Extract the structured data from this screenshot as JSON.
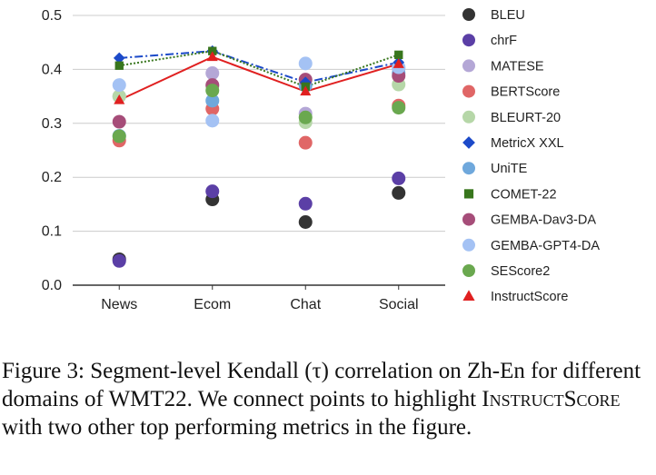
{
  "chart_data": {
    "type": "scatter",
    "categories": [
      "News",
      "Ecom",
      "Chat",
      "Social"
    ],
    "ylim": [
      0,
      0.5
    ],
    "yticks": [
      "0.0",
      "0.1",
      "0.2",
      "0.3",
      "0.4",
      "0.5"
    ],
    "connected_series": [
      "MetricX XXL",
      "COMET-22",
      "InstructScore"
    ],
    "series": [
      {
        "name": "BLEU",
        "color": "#333333",
        "marker": "circle",
        "values": [
          0.048,
          0.159,
          0.117,
          0.171
        ]
      },
      {
        "name": "chrF",
        "color": "#5b3fa6",
        "marker": "circle",
        "values": [
          0.045,
          0.174,
          0.151,
          0.198
        ]
      },
      {
        "name": "MATESE",
        "color": "#b4a7d6",
        "marker": "circle",
        "values": [
          0.35,
          0.393,
          0.318,
          0.402
        ]
      },
      {
        "name": "BERTScore",
        "color": "#e06666",
        "marker": "circle",
        "values": [
          0.268,
          0.327,
          0.264,
          0.333
        ]
      },
      {
        "name": "BLEURT-20",
        "color": "#b6d7a8",
        "marker": "circle",
        "values": [
          0.35,
          0.369,
          0.302,
          0.372
        ]
      },
      {
        "name": "MetricX XXL",
        "color": "#1c4ac9",
        "marker": "diamond",
        "line": "dashdot",
        "values": [
          0.421,
          0.434,
          0.376,
          0.413
        ]
      },
      {
        "name": "UniTE",
        "color": "#6fa8dc",
        "marker": "circle",
        "values": [
          0.277,
          0.342,
          0.37,
          0.393
        ]
      },
      {
        "name": "COMET-22",
        "color": "#38761d",
        "marker": "square",
        "line": "dotted",
        "values": [
          0.407,
          0.434,
          0.368,
          0.427
        ]
      },
      {
        "name": "GEMBA-Dav3-DA",
        "color": "#a64d79",
        "marker": "circle",
        "values": [
          0.303,
          0.371,
          0.381,
          0.388
        ]
      },
      {
        "name": "GEMBA-GPT4-DA",
        "color": "#a4c2f4",
        "marker": "circle",
        "values": [
          0.371,
          0.305,
          0.411,
          0.404
        ]
      },
      {
        "name": "SEScore2",
        "color": "#6aa84f",
        "marker": "circle",
        "values": [
          0.276,
          0.361,
          0.311,
          0.329
        ]
      },
      {
        "name": "InstructScore",
        "color": "#e02020",
        "marker": "triangle",
        "line": "solid",
        "values": [
          0.343,
          0.423,
          0.359,
          0.41
        ]
      }
    ]
  },
  "caption": {
    "part1": "Figure 3: Segment-level Kendall (τ) correlation on Zh-En for different domains of WMT22. We connect points to highlight ",
    "metric_name": "InstructScore",
    "part2": " with two other top performing metrics in the figure."
  }
}
